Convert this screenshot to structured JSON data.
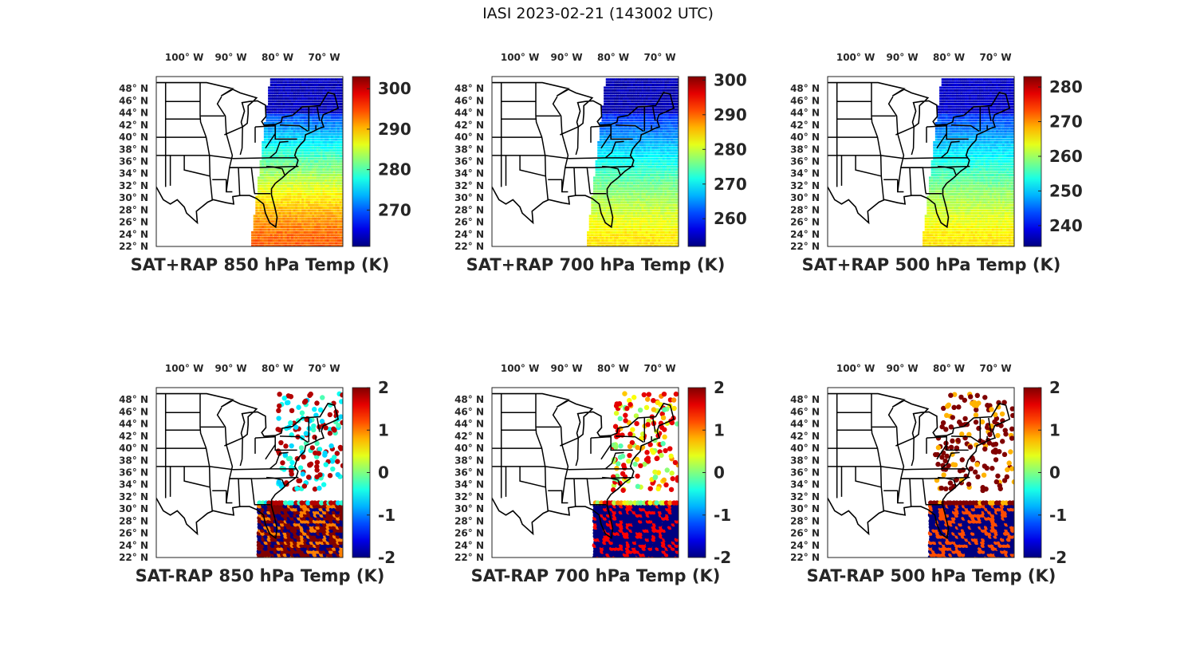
{
  "figure": {
    "title": "IASI 2023-02-21 (143002 UTC)"
  },
  "chart_data": [
    {
      "type": "scatter",
      "title": "SAT+RAP 850 hPa Temp (K)",
      "kind": "abs",
      "colormap": "jet",
      "clim": [
        261,
        303
      ],
      "colorbar_ticks": [
        270,
        280,
        290,
        300
      ],
      "xlim": [
        -106,
        -66
      ],
      "ylim": [
        22,
        50
      ],
      "xticks": [
        "100° W",
        "90° W",
        "80° W",
        "70° W"
      ],
      "yticks": [
        "48° N",
        "46° N",
        "44° N",
        "42° N",
        "40° N",
        "38° N",
        "36° N",
        "34° N",
        "32° N",
        "30° N",
        "28° N",
        "26° N",
        "24° N",
        "22° N"
      ]
    },
    {
      "type": "scatter",
      "title": "SAT+RAP 700 hPa Temp (K)",
      "kind": "abs",
      "colormap": "jet",
      "clim": [
        252,
        301
      ],
      "colorbar_ticks": [
        260,
        270,
        280,
        290,
        300
      ],
      "xlim": [
        -106,
        -66
      ],
      "ylim": [
        22,
        50
      ],
      "xticks": [
        "100° W",
        "90° W",
        "80° W",
        "70° W"
      ],
      "yticks": [
        "48° N",
        "46° N",
        "44° N",
        "42° N",
        "40° N",
        "38° N",
        "36° N",
        "34° N",
        "32° N",
        "30° N",
        "28° N",
        "26° N",
        "24° N",
        "22° N"
      ]
    },
    {
      "type": "scatter",
      "title": "SAT+RAP 500 hPa Temp (K)",
      "kind": "abs",
      "colormap": "jet",
      "clim": [
        234,
        283
      ],
      "colorbar_ticks": [
        240,
        250,
        260,
        270,
        280
      ],
      "xlim": [
        -106,
        -66
      ],
      "ylim": [
        22,
        50
      ],
      "xticks": [
        "100° W",
        "90° W",
        "80° W",
        "70° W"
      ],
      "yticks": [
        "48° N",
        "46° N",
        "44° N",
        "42° N",
        "40° N",
        "38° N",
        "36° N",
        "34° N",
        "32° N",
        "30° N",
        "28° N",
        "26° N",
        "24° N",
        "22° N"
      ]
    },
    {
      "type": "scatter",
      "title": "SAT-RAP 850 hPa Temp (K)",
      "kind": "diff",
      "colormap": "jet",
      "clim": [
        -2,
        2
      ],
      "colorbar_ticks": [
        -2,
        -1,
        0,
        1,
        2
      ],
      "xlim": [
        -106,
        -66
      ],
      "ylim": [
        22,
        50
      ],
      "xticks": [
        "100° W",
        "90° W",
        "80° W",
        "70° W"
      ],
      "yticks": [
        "48° N",
        "46° N",
        "44° N",
        "42° N",
        "40° N",
        "38° N",
        "36° N",
        "34° N",
        "32° N",
        "30° N",
        "28° N",
        "26° N",
        "24° N",
        "22° N"
      ]
    },
    {
      "type": "scatter",
      "title": "SAT-RAP 700 hPa Temp (K)",
      "kind": "diff",
      "colormap": "jet",
      "clim": [
        -2,
        2
      ],
      "colorbar_ticks": [
        -2,
        -1,
        0,
        1,
        2
      ],
      "xlim": [
        -106,
        -66
      ],
      "ylim": [
        22,
        50
      ],
      "xticks": [
        "100° W",
        "90° W",
        "80° W",
        "70° W"
      ],
      "yticks": [
        "48° N",
        "46° N",
        "44° N",
        "42° N",
        "40° N",
        "38° N",
        "36° N",
        "34° N",
        "32° N",
        "30° N",
        "28° N",
        "26° N",
        "24° N",
        "22° N"
      ]
    },
    {
      "type": "scatter",
      "title": "SAT-RAP 500 hPa Temp (K)",
      "kind": "diff",
      "colormap": "jet",
      "clim": [
        -2,
        2
      ],
      "colorbar_ticks": [
        -2,
        -1,
        0,
        1,
        2
      ],
      "xlim": [
        -106,
        -66
      ],
      "ylim": [
        22,
        50
      ],
      "xticks": [
        "100° W",
        "90° W",
        "80° W",
        "70° W"
      ],
      "yticks": [
        "48° N",
        "46° N",
        "44° N",
        "42° N",
        "40° N",
        "38° N",
        "36° N",
        "34° N",
        "32° N",
        "30° N",
        "28° N",
        "26° N",
        "24° N",
        "22° N"
      ]
    }
  ]
}
